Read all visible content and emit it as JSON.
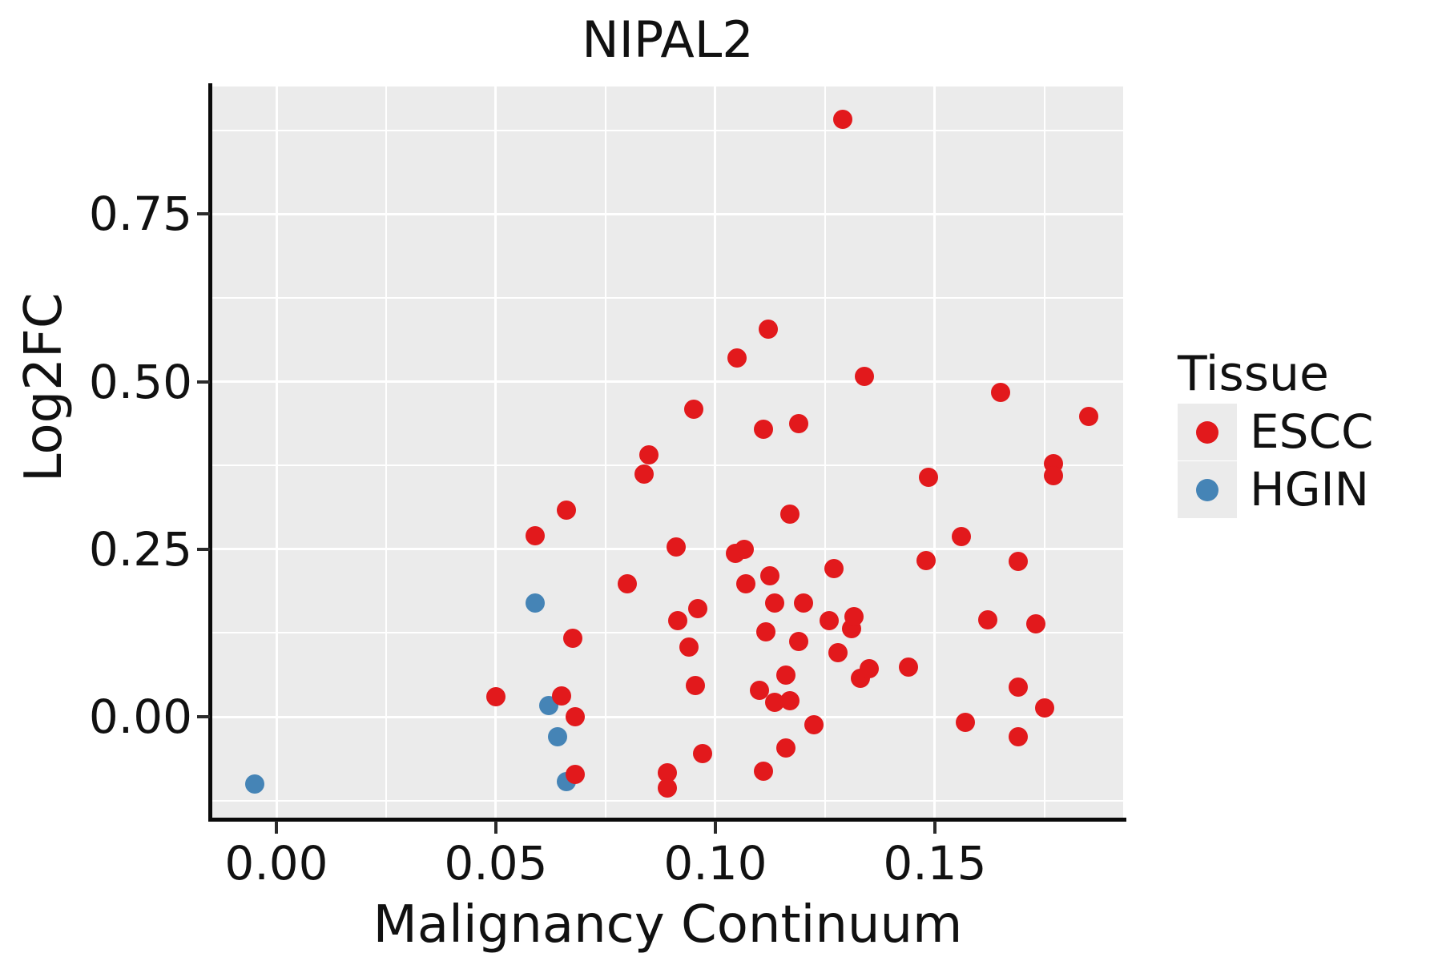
{
  "title": "NIPAL2",
  "axis_titles": {
    "x": "Malignancy Continuum",
    "y": "Log2FC"
  },
  "legend": {
    "title": "Tissue",
    "items": [
      {
        "label": "ESCC",
        "color": "#E2191C"
      },
      {
        "label": "HGIN",
        "color": "#4584B6"
      }
    ]
  },
  "colors": {
    "panel_background": "#EBEBEB",
    "gridline": "#ffffff",
    "axis_line": "#0a0a0a",
    "escc": "#E2191C",
    "hgin": "#4584B6"
  },
  "chart_data": {
    "type": "scatter",
    "title": "NIPAL2",
    "xlabel": "Malignancy Continuum",
    "ylabel": "Log2FC",
    "xlim": [
      -0.0146,
      0.1929
    ],
    "ylim": [
      -0.1505,
      0.9403
    ],
    "x_ticks": [
      0.0,
      0.05,
      0.1,
      0.15
    ],
    "x_tick_labels": [
      "0.00",
      "0.05",
      "0.10",
      "0.15"
    ],
    "y_ticks": [
      0.0,
      0.25,
      0.5,
      0.75
    ],
    "y_tick_labels": [
      "0.00",
      "0.25",
      "0.50",
      "0.75"
    ],
    "x_minor_ticks": [
      0.025,
      0.075,
      0.125,
      0.175
    ],
    "y_minor_ticks": [
      -0.125,
      0.125,
      0.375,
      0.625,
      0.875
    ],
    "grid": true,
    "legend_position": "right",
    "series": [
      {
        "name": "HGIN",
        "color": "#4584B6",
        "points": [
          [
            -0.005,
            -0.1
          ],
          [
            0.059,
            0.17
          ],
          [
            0.062,
            0.017
          ],
          [
            0.064,
            -0.03
          ],
          [
            0.066,
            -0.097
          ]
        ]
      },
      {
        "name": "ESCC",
        "color": "#E2191C",
        "points": [
          [
            0.05,
            0.03
          ],
          [
            0.059,
            0.27
          ],
          [
            0.065,
            0.031
          ],
          [
            0.066,
            0.308
          ],
          [
            0.0675,
            0.117
          ],
          [
            0.068,
            0.0
          ],
          [
            0.068,
            -0.086
          ],
          [
            0.08,
            0.198
          ],
          [
            0.0837,
            0.362
          ],
          [
            0.0848,
            0.391
          ],
          [
            0.089,
            -0.084
          ],
          [
            0.089,
            -0.106
          ],
          [
            0.091,
            0.253
          ],
          [
            0.0915,
            0.143
          ],
          [
            0.094,
            0.104
          ],
          [
            0.095,
            0.459
          ],
          [
            0.0955,
            0.047
          ],
          [
            0.096,
            0.161
          ],
          [
            0.097,
            -0.055
          ],
          [
            0.1045,
            0.244
          ],
          [
            0.105,
            0.535
          ],
          [
            0.1065,
            0.25
          ],
          [
            0.107,
            0.198
          ],
          [
            0.11,
            0.039
          ],
          [
            0.111,
            0.429
          ],
          [
            0.111,
            -0.081
          ],
          [
            0.1115,
            0.127
          ],
          [
            0.1125,
            0.21
          ],
          [
            0.1135,
            0.17
          ],
          [
            0.1135,
            0.021
          ],
          [
            0.112,
            0.578
          ],
          [
            0.116,
            0.062
          ],
          [
            0.116,
            -0.046
          ],
          [
            0.117,
            0.024
          ],
          [
            0.117,
            0.302
          ],
          [
            0.119,
            0.437
          ],
          [
            0.119,
            0.112
          ],
          [
            0.12,
            0.17
          ],
          [
            0.1225,
            -0.012
          ],
          [
            0.126,
            0.143
          ],
          [
            0.127,
            0.221
          ],
          [
            0.128,
            0.096
          ],
          [
            0.129,
            0.891
          ],
          [
            0.131,
            0.131
          ],
          [
            0.1315,
            0.149
          ],
          [
            0.133,
            0.057
          ],
          [
            0.135,
            0.072
          ],
          [
            0.134,
            0.508
          ],
          [
            0.144,
            0.074
          ],
          [
            0.1485,
            0.357
          ],
          [
            0.148,
            0.233
          ],
          [
            0.157,
            -0.008
          ],
          [
            0.156,
            0.269
          ],
          [
            0.162,
            0.145
          ],
          [
            0.165,
            0.484
          ],
          [
            0.169,
            0.232
          ],
          [
            0.169,
            0.044
          ],
          [
            0.169,
            -0.03
          ],
          [
            0.173,
            0.139
          ],
          [
            0.175,
            0.013
          ],
          [
            0.177,
            0.378
          ],
          [
            0.177,
            0.36
          ],
          [
            0.185,
            0.448
          ]
        ]
      }
    ]
  }
}
